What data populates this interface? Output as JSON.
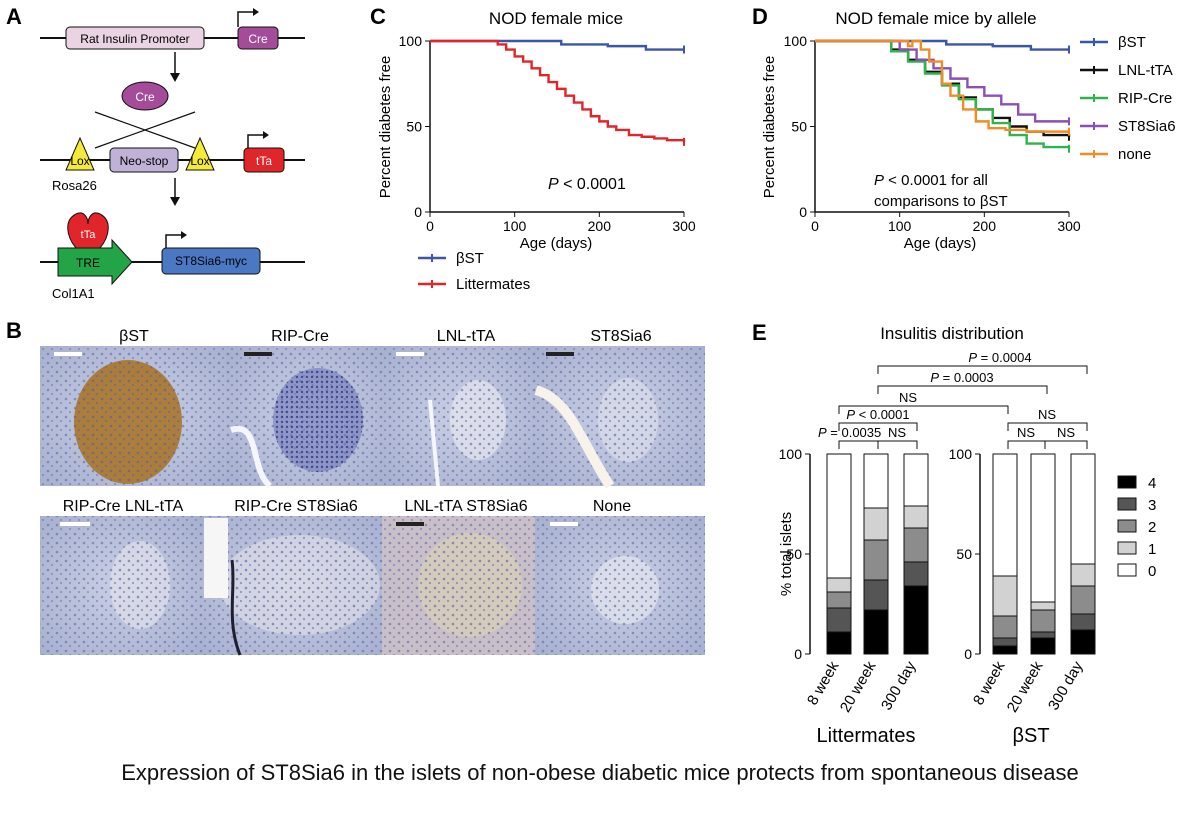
{
  "panels": {
    "A": {
      "letter": "A",
      "promoter": "Rat Insulin Promoter",
      "cre_box": "Cre",
      "cre_oval": "Cre",
      "lox_left": "Lox",
      "neo_stop": "Neo-stop",
      "lox_right": "Lox",
      "tta_box": "tTa",
      "rosa": "Rosa26",
      "tta_bound": "tTa",
      "tre": "TRE",
      "st8_myc": "ST8Sia6-myc",
      "col": "Col1A1"
    },
    "B": {
      "letter": "B",
      "top_labels": [
        "βST",
        "RIP-Cre",
        "LNL-tTA",
        "ST8Sia6"
      ],
      "bottom_labels": [
        "RIP-Cre LNL-tTA",
        "RIP-Cre ST8Sia6",
        "LNL-tTA ST8Sia6",
        "None"
      ]
    },
    "C": {
      "letter": "C"
    },
    "D": {
      "letter": "D"
    },
    "E": {
      "letter": "E"
    }
  },
  "caption": "Expression of ST8Sia6 in the islets of non-obese diabetic mice protects from spontaneous disease",
  "chart_data": [
    {
      "id": "C",
      "type": "line",
      "step": true,
      "title": "NOD female mice",
      "xlabel": "Age (days)",
      "ylabel": "Percent diabetes free",
      "xlim": [
        0,
        300
      ],
      "ylim": [
        0,
        100
      ],
      "xticks": [
        0,
        100,
        200,
        300
      ],
      "yticks": [
        0,
        50,
        100
      ],
      "annotation": "P < 0.0001",
      "legend_position": "bottom",
      "series": [
        {
          "name": "βST",
          "color": "#3a56a6",
          "points": [
            [
              0,
              100
            ],
            [
              70,
              100
            ],
            [
              150,
              100
            ],
            [
              155,
              98
            ],
            [
              200,
              98
            ],
            [
              210,
              97
            ],
            [
              250,
              97
            ],
            [
              255,
              95
            ],
            [
              300,
              95
            ]
          ]
        },
        {
          "name": "Littermates",
          "color": "#e0262a",
          "points": [
            [
              0,
              100
            ],
            [
              70,
              100
            ],
            [
              80,
              98
            ],
            [
              90,
              95
            ],
            [
              100,
              91
            ],
            [
              110,
              88
            ],
            [
              120,
              84
            ],
            [
              130,
              80
            ],
            [
              140,
              76
            ],
            [
              150,
              72
            ],
            [
              160,
              68
            ],
            [
              170,
              64
            ],
            [
              180,
              60
            ],
            [
              190,
              56
            ],
            [
              200,
              53
            ],
            [
              210,
              50
            ],
            [
              220,
              48
            ],
            [
              235,
              45
            ],
            [
              250,
              44
            ],
            [
              265,
              43
            ],
            [
              280,
              42
            ],
            [
              300,
              41
            ]
          ]
        }
      ]
    },
    {
      "id": "D",
      "type": "line",
      "step": true,
      "title": "NOD female mice by allele",
      "xlabel": "Age (days)",
      "ylabel": "Percent diabetes free",
      "xlim": [
        0,
        300
      ],
      "ylim": [
        0,
        100
      ],
      "xticks": [
        0,
        100,
        200,
        300
      ],
      "yticks": [
        0,
        50,
        100
      ],
      "annotation": [
        "P < 0.0001 for all",
        "comparisons to βST"
      ],
      "legend_position": "right",
      "series": [
        {
          "name": "βST",
          "color": "#3a56a6",
          "points": [
            [
              0,
              100
            ],
            [
              150,
              100
            ],
            [
              155,
              98
            ],
            [
              200,
              98
            ],
            [
              210,
              97
            ],
            [
              250,
              97
            ],
            [
              255,
              95
            ],
            [
              300,
              95
            ]
          ]
        },
        {
          "name": "LNL-tTA",
          "color": "#111111",
          "points": [
            [
              0,
              100
            ],
            [
              70,
              100
            ],
            [
              90,
              95
            ],
            [
              110,
              89
            ],
            [
              130,
              82
            ],
            [
              150,
              75
            ],
            [
              170,
              67
            ],
            [
              190,
              60
            ],
            [
              210,
              55
            ],
            [
              230,
              50
            ],
            [
              250,
              47
            ],
            [
              270,
              45
            ],
            [
              300,
              44
            ]
          ]
        },
        {
          "name": "RIP-Cre",
          "color": "#2fb34a",
          "points": [
            [
              0,
              100
            ],
            [
              70,
              100
            ],
            [
              90,
              94
            ],
            [
              110,
              88
            ],
            [
              130,
              81
            ],
            [
              150,
              74
            ],
            [
              170,
              66
            ],
            [
              190,
              60
            ],
            [
              210,
              52
            ],
            [
              230,
              45
            ],
            [
              250,
              40
            ],
            [
              270,
              38
            ],
            [
              300,
              37
            ]
          ]
        },
        {
          "name": "ST8Sia6",
          "color": "#8c4fb5",
          "points": [
            [
              0,
              100
            ],
            [
              80,
              100
            ],
            [
              100,
              95
            ],
            [
              120,
              89
            ],
            [
              140,
              84
            ],
            [
              160,
              78
            ],
            [
              180,
              73
            ],
            [
              200,
              68
            ],
            [
              220,
              63
            ],
            [
              240,
              57
            ],
            [
              260,
              53
            ],
            [
              280,
              53
            ],
            [
              300,
              53
            ]
          ]
        },
        {
          "name": "none",
          "color": "#f08c26",
          "points": [
            [
              0,
              100
            ],
            [
              100,
              100
            ],
            [
              110,
              97
            ],
            [
              115,
              100
            ],
            [
              125,
              95
            ],
            [
              135,
              88
            ],
            [
              150,
              75
            ],
            [
              160,
              68
            ],
            [
              175,
              60
            ],
            [
              190,
              53
            ],
            [
              205,
              49
            ],
            [
              225,
              48
            ],
            [
              250,
              47
            ],
            [
              270,
              47
            ],
            [
              300,
              47
            ]
          ]
        }
      ]
    },
    {
      "id": "E",
      "type": "bar",
      "stacked": true,
      "title": "Insulitis distribution",
      "ylabel": "% total islets",
      "ylim": [
        0,
        100
      ],
      "yticks": [
        0,
        50,
        100
      ],
      "legend_position": "right",
      "score_labels": [
        "4",
        "3",
        "2",
        "1",
        "0"
      ],
      "score_colors": {
        "4": "#000000",
        "3": "#555555",
        "2": "#8c8c8c",
        "1": "#d2d2d2",
        "0": "#ffffff"
      },
      "groups": [
        {
          "name": "Littermates",
          "bars": [
            {
              "label": "8 week",
              "4": 11,
              "3": 12,
              "2": 8,
              "1": 7,
              "0": 62
            },
            {
              "label": "20 week",
              "4": 22,
              "3": 15,
              "2": 20,
              "1": 16,
              "0": 27
            },
            {
              "label": "300 day",
              "4": 34,
              "3": 12,
              "2": 17,
              "1": 11,
              "0": 26
            }
          ]
        },
        {
          "name": "βST",
          "bars": [
            {
              "label": "8 week",
              "4": 4,
              "3": 4,
              "2": 11,
              "1": 20,
              "0": 61
            },
            {
              "label": "20 week",
              "4": 8,
              "3": 3,
              "2": 11,
              "1": 4,
              "0": 74
            },
            {
              "label": "300 day",
              "4": 12,
              "3": 8,
              "2": 14,
              "1": 11,
              "0": 55
            }
          ]
        }
      ],
      "comparisons": [
        {
          "text": "P = 0.0004"
        },
        {
          "text": "P = 0.0003"
        },
        {
          "text": "NS"
        },
        {
          "text": "P < 0.0001"
        },
        {
          "text": "P = 0.0035"
        },
        {
          "text": "NS"
        },
        {
          "text": "NS"
        },
        {
          "text": "NS"
        },
        {
          "text": "NS"
        }
      ]
    }
  ]
}
